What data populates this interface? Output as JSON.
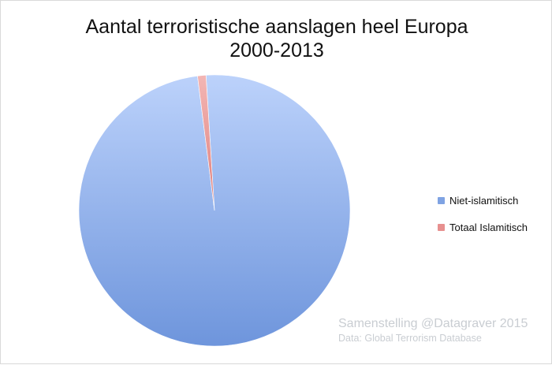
{
  "chart_data": {
    "type": "pie",
    "title": "Aantal terroristische aanslagen heel Europa",
    "subtitle": "2000-2013",
    "slices": [
      {
        "label": "Niet-islamitisch",
        "value": 99.0,
        "color": "#7fa3e3"
      },
      {
        "label": "Totaal Islamitisch",
        "value": 1.0,
        "color": "#e7908f"
      }
    ],
    "legend_position": "right"
  },
  "credit": {
    "line1": "Samenstelling @Datagraver 2015",
    "line2": "Data: Global Terrorism Database"
  }
}
